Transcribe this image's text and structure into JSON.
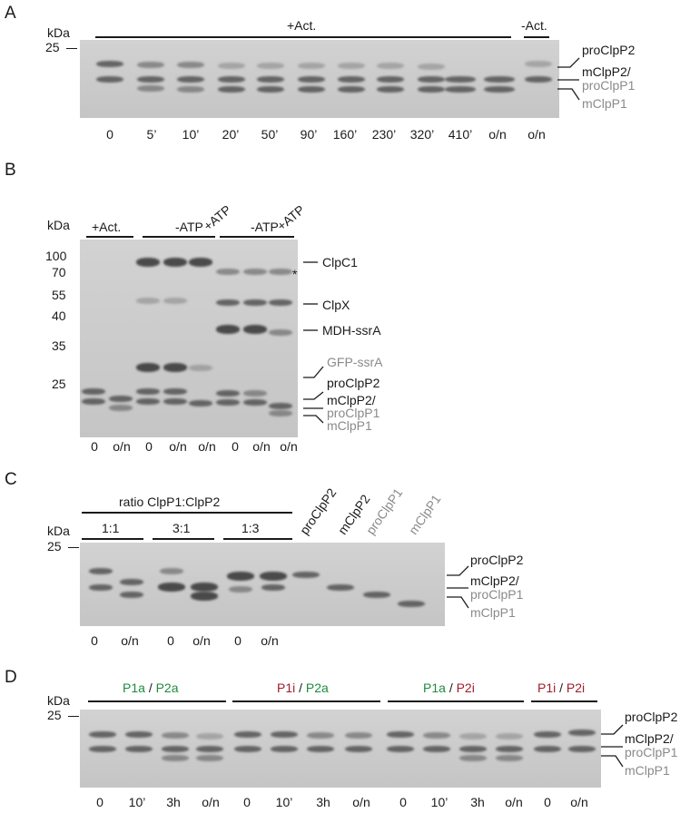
{
  "panels": {
    "A": {
      "letter": "A",
      "kda": "kDa",
      "marker": "25",
      "header_act": "+Act.",
      "header_noact": "-Act.",
      "lanes": [
        "0",
        "5’",
        "10’",
        "20’",
        "50’",
        "90’",
        "160’",
        "230’",
        "320’",
        "410’",
        "o/n",
        "o/n"
      ],
      "side_labels": {
        "pro2": "proClpP2",
        "m2": "mClpP2/",
        "pro1": "proClpP1",
        "m1": "mClpP1"
      }
    },
    "B": {
      "letter": "B",
      "kda": "kDa",
      "markers": [
        "100",
        "70",
        "55",
        "40",
        "35",
        "25"
      ],
      "header_act": "+Act.",
      "header_atp_minus_1": "-ATP",
      "header_atp_plus_1": "+ATP",
      "header_atp_minus_2": "-ATP",
      "header_atp_plus_2": "+ATP",
      "lanes": [
        "0",
        "o/n",
        "0",
        "o/n",
        "o/n",
        "0",
        "o/n",
        "o/n"
      ],
      "side_labels": {
        "clpc1": "ClpC1",
        "star": "*",
        "clpx": "ClpX",
        "mdh": "MDH-ssrA",
        "gfp": "GFP-ssrA",
        "pro2": "proClpP2",
        "m2": "mClpP2/",
        "pro1": "proClpP1",
        "m1": "mClpP1"
      }
    },
    "C": {
      "letter": "C",
      "kda": "kDa",
      "marker": "25",
      "ratio_title": "ratio ClpP1:ClpP2",
      "ratios": [
        "1:1",
        "3:1",
        "1:3"
      ],
      "rotated": [
        "proClpP2",
        "mClpP2",
        "proClpP1",
        "mClpP1"
      ],
      "lanes": [
        "0",
        "o/n",
        "0",
        "o/n",
        "0",
        "o/n"
      ],
      "side_labels": {
        "pro2": "proClpP2",
        "m2": "mClpP2/",
        "pro1": "proClpP1",
        "m1": "mClpP1"
      }
    },
    "D": {
      "letter": "D",
      "kda": "kDa",
      "marker": "25",
      "groups": [
        {
          "p1": "P1a",
          "sep": "/",
          "p2": "P2a"
        },
        {
          "p1": "P1i",
          "sep": "/",
          "p2": "P2a"
        },
        {
          "p1": "P1a",
          "sep": "/",
          "p2": "P2i"
        },
        {
          "p1": "P1i",
          "sep": "/",
          "p2": "P2i"
        }
      ],
      "lanes": [
        "0",
        "10’",
        "3h",
        "o/n",
        "0",
        "10’",
        "3h",
        "o/n",
        "0",
        "10’",
        "3h",
        "o/n",
        "0",
        "o/n"
      ],
      "side_labels": {
        "pro2": "proClpP2",
        "m2": "mClpP2/",
        "pro1": "proClpP1",
        "m1": "mClpP1"
      }
    }
  },
  "colors": {
    "active": "#1f8a3c",
    "inactive": "#a01c2c",
    "grey_label": "#8a8a8a"
  }
}
